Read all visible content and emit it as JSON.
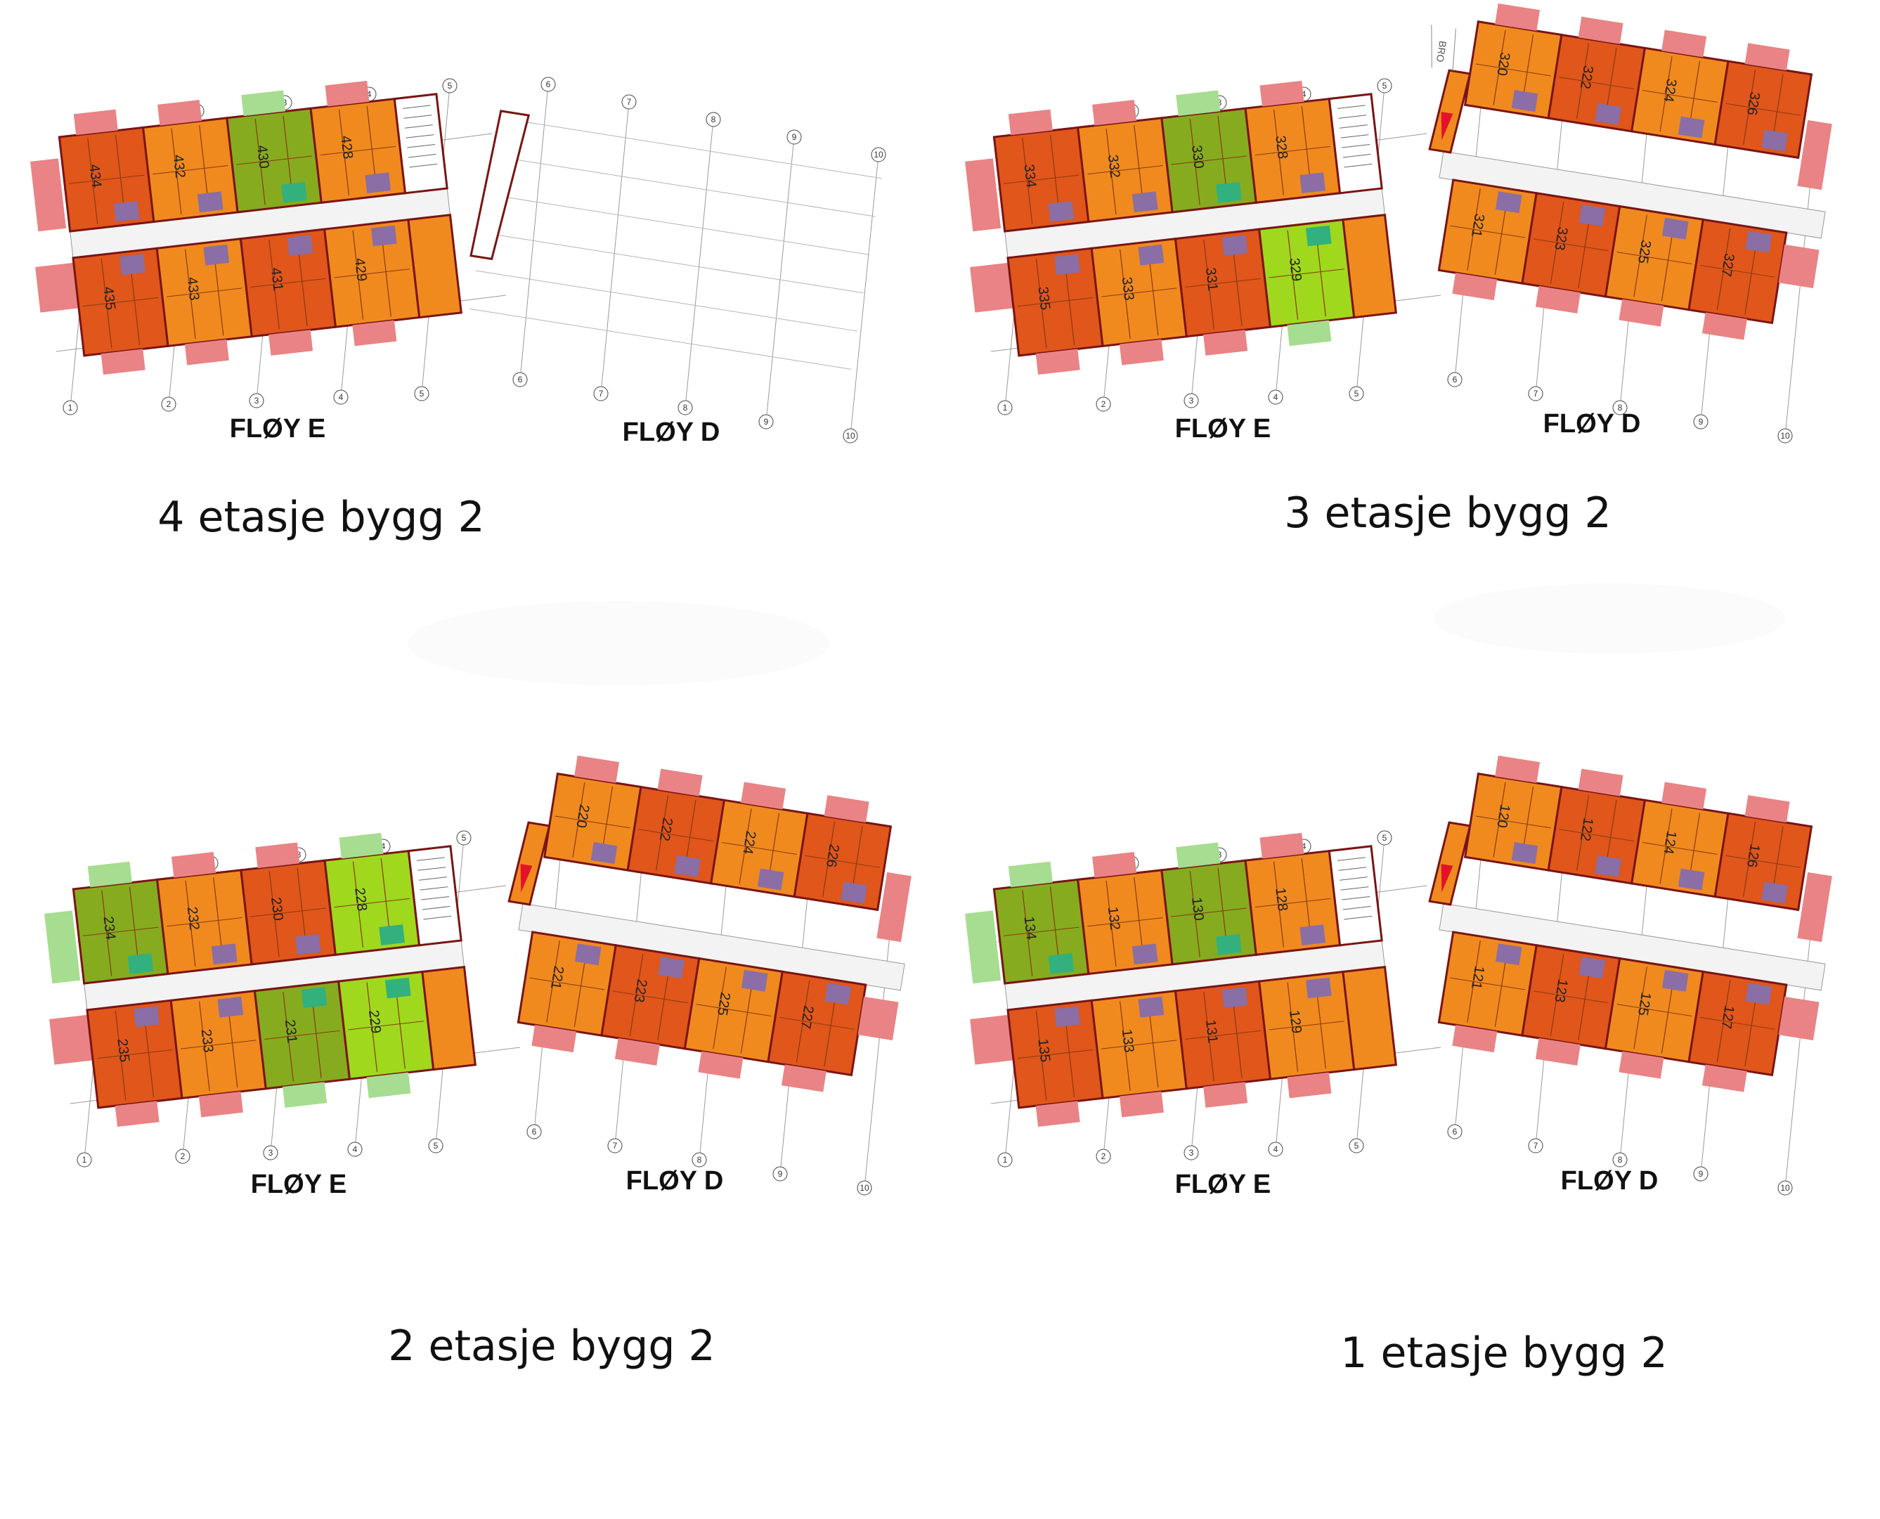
{
  "colors": {
    "orange": "#f08a1f",
    "darkOrange": "#e0561b",
    "lightGreen": "#9fd81d",
    "oliveGreen": "#86ab1f",
    "pink": "#e98385",
    "paleGreen": "#a6dd90",
    "teal": "#32b07e",
    "purple": "#8a6ea5",
    "red": "#e3122b",
    "corridor": "#f3f3f3",
    "wall": "#7a1414",
    "gridLine": "#9a9a9a"
  },
  "floors": [
    {
      "id": "floor-4",
      "caption": "4 etasje bygg 2",
      "wing_labels": [
        "FLØY E",
        "FLØY D"
      ],
      "wingD_built": false,
      "rooms_e_top": [
        "434",
        "432",
        "430",
        "428"
      ],
      "rooms_e_bottom": [
        "435",
        "433",
        "431",
        "429"
      ],
      "rooms_d_top": [],
      "rooms_d_bottom": [],
      "green_e_top": [
        2
      ],
      "green_e_bottom": [],
      "grid_numbers": [
        "1",
        "2",
        "3",
        "4",
        "5",
        "6",
        "7",
        "8",
        "9",
        "10"
      ]
    },
    {
      "id": "floor-3",
      "caption": "3 etasje bygg 2",
      "wing_labels": [
        "FLØY E",
        "FLØY D"
      ],
      "wingD_built": true,
      "bridge_label": "BRO",
      "rooms_e_top": [
        "334",
        "332",
        "330",
        "328"
      ],
      "rooms_e_bottom": [
        "335",
        "333",
        "331",
        "329"
      ],
      "rooms_d_top": [
        "320",
        "322",
        "324",
        "326"
      ],
      "rooms_d_bottom": [
        "321",
        "323",
        "325",
        "327"
      ],
      "green_e_top": [
        2
      ],
      "green_e_bottom": [
        3
      ],
      "grid_numbers": [
        "1",
        "2",
        "3",
        "4",
        "5",
        "6",
        "7",
        "8",
        "9",
        "10"
      ]
    },
    {
      "id": "floor-2",
      "caption": "2 etasje bygg 2",
      "wing_labels": [
        "FLØY E",
        "FLØY D"
      ],
      "wingD_built": true,
      "rooms_e_top": [
        "234",
        "232",
        "230",
        "228"
      ],
      "rooms_e_bottom": [
        "235",
        "233",
        "231",
        "229"
      ],
      "rooms_d_top": [
        "220",
        "222",
        "224",
        "226"
      ],
      "rooms_d_bottom": [
        "221",
        "223",
        "225",
        "227"
      ],
      "green_e_top": [
        0,
        3
      ],
      "green_e_bottom": [
        2,
        3
      ],
      "grid_numbers": [
        "1",
        "2",
        "3",
        "4",
        "5",
        "6",
        "7",
        "8",
        "9",
        "10"
      ]
    },
    {
      "id": "floor-1",
      "caption": "1 etasje bygg 2",
      "wing_labels": [
        "FLØY E",
        "FLØY D"
      ],
      "wingD_built": true,
      "rooms_e_top": [
        "134",
        "132",
        "130",
        "128"
      ],
      "rooms_e_bottom": [
        "135",
        "133",
        "131",
        "129"
      ],
      "rooms_d_top": [
        "120",
        "122",
        "124",
        "126"
      ],
      "rooms_d_bottom": [
        "121",
        "123",
        "125",
        "127"
      ],
      "green_e_top": [
        0,
        2
      ],
      "green_e_bottom": [],
      "grid_numbers": [
        "1",
        "2",
        "3",
        "4",
        "5",
        "6",
        "7",
        "8",
        "9",
        "10"
      ]
    }
  ]
}
